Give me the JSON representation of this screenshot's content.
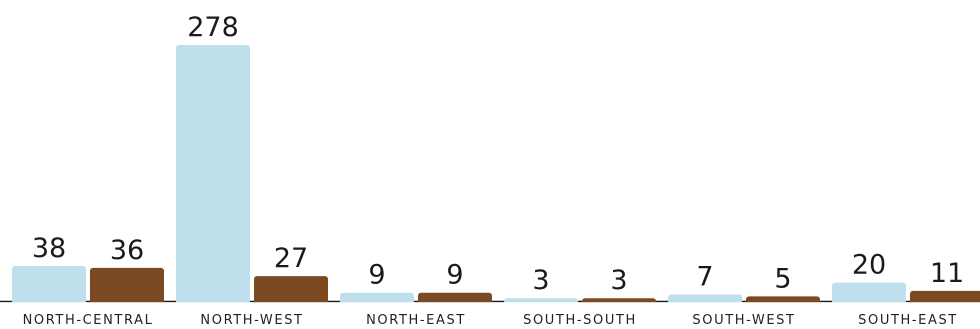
{
  "chart_data": {
    "type": "bar",
    "categories": [
      "NORTH-CENTRAL",
      "NORTH-WEST",
      "NORTH-EAST",
      "SOUTH-SOUTH",
      "SOUTH-WEST",
      "SOUTH-EAST"
    ],
    "series": [
      {
        "color": "#bedfeb",
        "values": [
          38,
          278,
          9,
          3,
          7,
          20
        ]
      },
      {
        "color": "#7b4a22",
        "values": [
          36,
          27,
          9,
          3,
          5,
          11
        ]
      }
    ],
    "ylim": [
      0,
      278
    ],
    "grid": false,
    "legend": "none",
    "baseline_color": "#1a1a1a"
  }
}
